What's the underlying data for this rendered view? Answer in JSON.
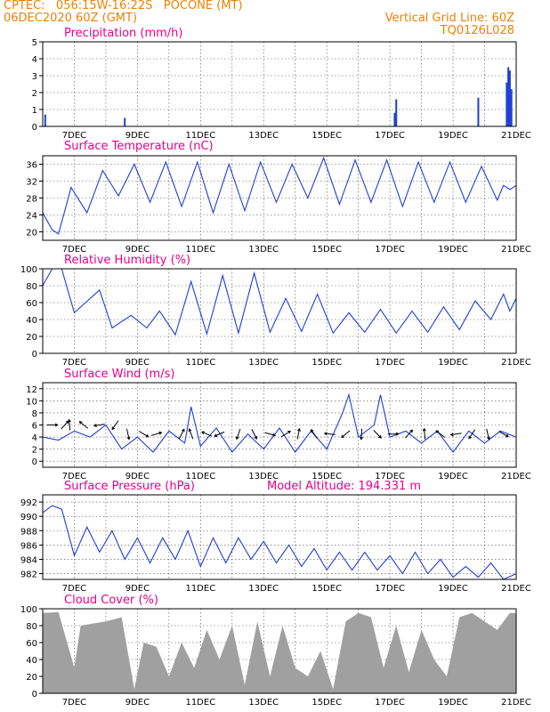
{
  "header": {
    "line1_left": "CPTEC:   056:15W-16:22S   POCONE (MT)",
    "line2_left": "06DEC2020 60Z (GMT)",
    "line2_right": "Vertical Grid Line: 60Z",
    "line3_right": "TQ0126L028"
  },
  "x_axis": {
    "tick_labels": [
      "7DEC",
      "9DEC",
      "11DEC",
      "13DEC",
      "15DEC",
      "17DEC",
      "19DEC",
      "21DEC"
    ]
  },
  "colors": {
    "series": "#1f3fd6",
    "cloud": "#a0a0a0",
    "title": "#e8008a",
    "header": "#f08000"
  },
  "chart_data": [
    {
      "type": "bar",
      "title": "Precipitation (mm/h)",
      "ylim": [
        0,
        5
      ],
      "yticks": [
        0,
        1,
        2,
        3,
        4,
        5
      ],
      "xlim_days": [
        6,
        21
      ],
      "bars": [
        {
          "x": 6.08,
          "value": 0.7
        },
        {
          "x": 8.6,
          "value": 0.5
        },
        {
          "x": 17.15,
          "value": 0.8
        },
        {
          "x": 17.2,
          "value": 1.6
        },
        {
          "x": 19.8,
          "value": 1.7
        },
        {
          "x": 20.7,
          "value": 2.6
        },
        {
          "x": 20.75,
          "value": 3.5
        },
        {
          "x": 20.8,
          "value": 3.3
        },
        {
          "x": 20.85,
          "value": 2.2
        }
      ]
    },
    {
      "type": "line",
      "title": "Surface Temperature (nC)",
      "ylim": [
        18,
        38
      ],
      "yticks": [
        20,
        24,
        28,
        32,
        36
      ],
      "xlim_days": [
        6,
        21
      ],
      "x": [
        6.0,
        6.3,
        6.5,
        6.9,
        7.4,
        7.9,
        8.4,
        8.9,
        9.4,
        9.9,
        10.4,
        10.9,
        11.4,
        11.9,
        12.4,
        12.9,
        13.4,
        13.9,
        14.4,
        14.9,
        15.4,
        15.9,
        16.4,
        16.9,
        17.4,
        17.9,
        18.4,
        18.9,
        19.4,
        19.9,
        20.4,
        20.6,
        20.8,
        21.0
      ],
      "values": [
        24.5,
        20.5,
        19.5,
        30.5,
        24.5,
        34.5,
        28.5,
        36,
        27,
        36.5,
        26,
        36.5,
        24.5,
        36,
        25,
        36.5,
        27,
        36,
        28,
        37.5,
        26.5,
        37,
        27,
        37,
        26,
        36.5,
        27,
        36.5,
        27,
        35.5,
        27.5,
        31,
        30,
        31
      ]
    },
    {
      "type": "line",
      "title": "Relative Humidity (%)",
      "ylim": [
        0,
        100
      ],
      "yticks": [
        0,
        20,
        40,
        60,
        80,
        100
      ],
      "xlim_days": [
        6,
        21
      ],
      "x": [
        6.0,
        6.3,
        6.6,
        7.0,
        7.8,
        8.2,
        8.8,
        9.3,
        9.7,
        10.2,
        10.7,
        11.2,
        11.7,
        12.2,
        12.7,
        13.2,
        13.7,
        14.2,
        14.7,
        15.2,
        15.7,
        16.2,
        16.7,
        17.2,
        17.7,
        18.2,
        18.7,
        19.2,
        19.7,
        20.2,
        20.6,
        20.8,
        21.0
      ],
      "values": [
        80,
        100,
        100,
        48,
        75,
        30,
        45,
        30,
        50,
        22,
        85,
        23,
        92,
        24,
        95,
        25,
        65,
        26,
        70,
        24,
        48,
        25,
        52,
        24,
        50,
        25,
        55,
        28,
        62,
        40,
        70,
        50,
        65
      ]
    },
    {
      "type": "line",
      "title": "Surface Wind (m/s)",
      "ylim": [
        -1,
        13
      ],
      "yticks": [
        0,
        2,
        4,
        6,
        8,
        10,
        12
      ],
      "xlim_days": [
        6,
        21
      ],
      "x": [
        6.0,
        6.5,
        7.0,
        7.5,
        8.0,
        8.5,
        9.0,
        9.5,
        10.0,
        10.5,
        10.7,
        11.0,
        11.5,
        12.0,
        12.5,
        13.0,
        13.5,
        14.0,
        14.5,
        15.0,
        15.5,
        15.7,
        16.0,
        16.5,
        16.7,
        17.0,
        17.5,
        18.0,
        18.5,
        19.0,
        19.5,
        20.0,
        20.5,
        21.0
      ],
      "values": [
        4,
        3.5,
        5,
        4,
        6,
        2,
        4,
        1.5,
        5,
        3,
        9,
        2.5,
        5.5,
        1.5,
        4.5,
        2,
        5.5,
        1.5,
        5,
        2,
        8,
        11,
        4,
        6,
        11,
        4,
        5,
        3,
        5,
        1.5,
        5,
        3,
        5,
        4
      ],
      "arrow_positions": [
        6.3,
        6.7,
        6.85,
        7.3,
        7.8,
        8.3,
        8.7,
        9.2,
        9.6,
        10.4,
        10.7,
        11.2,
        11.6,
        12.2,
        12.7,
        13.2,
        13.7,
        14.1,
        14.6,
        15.1,
        15.6,
        16.1,
        16.6,
        17.1,
        17.6,
        18.1,
        18.6,
        19.1,
        19.6,
        20.1,
        20.6
      ]
    },
    {
      "type": "line",
      "title": "Surface Pressure (hPa)",
      "annotation": "Model Altitude: 194.331 m",
      "ylim": [
        981.2,
        993
      ],
      "yticks": [
        982,
        984,
        986,
        988,
        990,
        992
      ],
      "xlim_days": [
        6,
        21
      ],
      "x": [
        6.0,
        6.3,
        6.6,
        7.0,
        7.4,
        7.8,
        8.2,
        8.6,
        9.0,
        9.4,
        9.8,
        10.2,
        10.6,
        11.0,
        11.4,
        11.8,
        12.2,
        12.6,
        13.0,
        13.4,
        13.8,
        14.2,
        14.6,
        15.0,
        15.4,
        15.8,
        16.2,
        16.6,
        17.0,
        17.4,
        17.8,
        18.2,
        18.6,
        19.0,
        19.4,
        19.8,
        20.2,
        20.6,
        21.0
      ],
      "values": [
        990.5,
        991.5,
        991,
        984.5,
        988.5,
        985,
        988,
        984,
        987,
        983.5,
        987,
        984,
        988,
        983,
        987,
        983.5,
        987,
        984,
        986.5,
        983.5,
        986,
        983,
        985.5,
        982.5,
        985,
        982.5,
        985,
        982.5,
        984.5,
        982,
        985,
        982,
        984,
        981.5,
        983,
        981.5,
        983.5,
        981.2,
        982
      ]
    },
    {
      "type": "area",
      "title": "Cloud Cover (%)",
      "ylim": [
        0,
        100
      ],
      "yticks": [
        0,
        20,
        40,
        60,
        80,
        100
      ],
      "xlim_days": [
        6,
        21
      ],
      "x": [
        6.0,
        6.5,
        7.0,
        7.2,
        7.5,
        8.0,
        8.5,
        8.9,
        9.2,
        9.6,
        10.0,
        10.4,
        10.8,
        11.2,
        11.6,
        12.0,
        12.4,
        12.8,
        13.2,
        13.6,
        14.0,
        14.4,
        14.8,
        15.2,
        15.6,
        16.0,
        16.4,
        16.8,
        17.2,
        17.6,
        18.0,
        18.4,
        18.8,
        19.2,
        19.6,
        20.0,
        20.4,
        20.8,
        21.0
      ],
      "values": [
        95,
        96,
        30,
        80,
        82,
        85,
        90,
        5,
        60,
        55,
        20,
        60,
        30,
        75,
        40,
        80,
        10,
        85,
        20,
        80,
        30,
        20,
        50,
        5,
        85,
        95,
        90,
        30,
        80,
        25,
        75,
        40,
        20,
        90,
        95,
        85,
        75,
        95,
        95
      ]
    }
  ]
}
